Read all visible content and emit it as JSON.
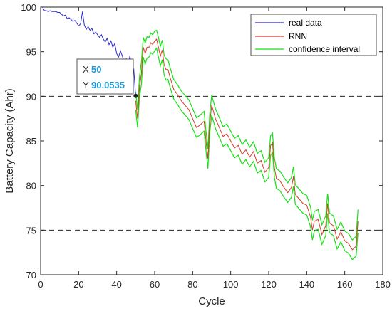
{
  "chart_data": {
    "type": "line",
    "title": "",
    "xlabel": "Cycle",
    "ylabel": "Battery Capacity (Ahr)",
    "xlim": [
      0,
      180
    ],
    "ylim": [
      70,
      100
    ],
    "xticks": [
      0,
      20,
      40,
      60,
      80,
      100,
      120,
      140,
      160,
      180
    ],
    "yticks": [
      70,
      75,
      80,
      85,
      90,
      95,
      100
    ],
    "xtick_labels": [
      "0",
      "20",
      "40",
      "60",
      "80",
      "100",
      "120",
      "140",
      "160",
      "180"
    ],
    "ytick_labels": [
      "70",
      "75",
      "80",
      "85",
      "90",
      "95",
      "100"
    ],
    "grid": false,
    "legend_position": "top-right",
    "reference_lines": [
      90,
      75
    ],
    "series": [
      {
        "name": "real data",
        "color": "#2a2ad0",
        "x": [
          1,
          2,
          3,
          4,
          5,
          6,
          7,
          8,
          9,
          10,
          11,
          12,
          13,
          14,
          15,
          16,
          17,
          18,
          19,
          20,
          21,
          22,
          23,
          24,
          25,
          26,
          27,
          28,
          29,
          30,
          31,
          32,
          33,
          34,
          35,
          36,
          37,
          38,
          39,
          40,
          41,
          42,
          43,
          44,
          45,
          46,
          47,
          48,
          49,
          50
        ],
        "y": [
          100,
          99.6,
          99.6,
          99.5,
          99.6,
          99.5,
          99.5,
          99.5,
          99.4,
          99.4,
          99.2,
          99.0,
          99.1,
          98.7,
          98.8,
          98.6,
          98.4,
          98.5,
          98.2,
          97.9,
          98.1,
          99.5,
          98.0,
          97.5,
          97.8,
          97.4,
          97.6,
          97.0,
          97.2,
          96.9,
          96.6,
          96.9,
          96.4,
          96.1,
          96.5,
          95.8,
          96.2,
          95.5,
          95.9,
          94.8,
          94.4,
          95.1,
          94.5,
          93.8,
          94.2,
          93.3,
          94.6,
          92.6,
          93.0,
          90.05
        ]
      },
      {
        "name": "RNN",
        "color": "#d83a2c",
        "x": [
          50,
          51,
          52,
          53,
          54,
          55,
          56,
          57,
          58,
          59,
          60,
          61,
          62,
          63,
          64,
          65,
          66,
          67,
          68,
          69,
          70,
          72,
          74,
          76,
          78,
          80,
          82,
          84,
          86,
          87,
          88,
          89,
          90,
          92,
          94,
          96,
          98,
          100,
          102,
          104,
          106,
          108,
          110,
          112,
          114,
          116,
          118,
          120,
          121,
          122,
          123,
          124,
          126,
          128,
          130,
          132,
          133,
          134,
          136,
          138,
          140,
          142,
          143,
          144,
          146,
          148,
          150,
          151,
          152,
          154,
          156,
          158,
          160,
          162,
          164,
          166,
          167
        ],
        "y": [
          89.5,
          87.5,
          91,
          92.5,
          95.5,
          94.8,
          95.5,
          95.5,
          96,
          95.8,
          96.2,
          96.4,
          95.5,
          94.5,
          95.2,
          93.5,
          93.0,
          93.0,
          92.2,
          91.5,
          90.8,
          90.2,
          89.5,
          89.0,
          88.5,
          87.5,
          86.5,
          86.8,
          87.2,
          85.0,
          83.0,
          87.0,
          89.0,
          87.5,
          86.5,
          85.5,
          85.8,
          85.0,
          84.2,
          84.5,
          83.5,
          84.0,
          83.2,
          83.8,
          82.5,
          82.8,
          81.5,
          82.0,
          84.5,
          84.8,
          82.0,
          80.8,
          80.5,
          79.8,
          79.2,
          79.8,
          81.0,
          79.0,
          78.5,
          78.0,
          77.8,
          76.5,
          75.0,
          76.0,
          76.2,
          74.5,
          75.5,
          78.0,
          75.8,
          75.5,
          74.0,
          74.8,
          73.8,
          73.5,
          72.8,
          73.2,
          76.0
        ]
      },
      {
        "name": "confidence interval",
        "color": "#15e115",
        "x": [
          50,
          51,
          52,
          53,
          54,
          55,
          56,
          57,
          58,
          59,
          60,
          61,
          62,
          63,
          64,
          65,
          66,
          67,
          68,
          69,
          70,
          72,
          74,
          76,
          78,
          80,
          82,
          84,
          86,
          87,
          88,
          89,
          90,
          92,
          94,
          96,
          98,
          100,
          102,
          104,
          106,
          108,
          110,
          112,
          114,
          116,
          118,
          120,
          121,
          122,
          123,
          124,
          126,
          128,
          130,
          132,
          133,
          134,
          136,
          138,
          140,
          142,
          143,
          144,
          146,
          148,
          150,
          151,
          152,
          154,
          156,
          158,
          160,
          162,
          164,
          166,
          167
        ],
        "upper": [
          90.5,
          88.5,
          92.2,
          93.8,
          96.6,
          96.0,
          96.7,
          96.6,
          97.1,
          96.9,
          97.3,
          97.4,
          96.6,
          95.6,
          96.3,
          94.6,
          94.2,
          94.1,
          93.3,
          92.6,
          91.9,
          91.3,
          90.6,
          90.1,
          89.6,
          88.6,
          87.6,
          87.9,
          88.3,
          86.1,
          84.1,
          88.1,
          90.1,
          88.6,
          87.6,
          86.6,
          86.9,
          86.1,
          85.3,
          85.6,
          84.6,
          85.1,
          84.3,
          84.9,
          83.6,
          83.9,
          82.6,
          83.1,
          85.6,
          85.9,
          83.1,
          81.9,
          81.6,
          80.9,
          80.3,
          80.9,
          82.1,
          80.1,
          79.6,
          79.1,
          78.9,
          77.6,
          76.1,
          77.1,
          77.3,
          75.6,
          76.6,
          79.1,
          76.9,
          76.6,
          75.1,
          75.9,
          74.9,
          74.6,
          73.9,
          74.3,
          77.3
        ],
        "lower": [
          88.5,
          86.5,
          89.9,
          91.3,
          94.4,
          93.6,
          94.3,
          94.4,
          94.9,
          94.7,
          95.1,
          95.4,
          94.4,
          93.4,
          94.1,
          92.4,
          91.8,
          91.9,
          91.1,
          90.4,
          89.7,
          89.1,
          88.4,
          87.9,
          87.4,
          86.4,
          85.4,
          85.7,
          86.1,
          83.9,
          81.9,
          85.9,
          87.9,
          86.4,
          85.4,
          84.4,
          84.7,
          83.9,
          83.1,
          83.4,
          82.4,
          82.9,
          82.1,
          82.7,
          81.4,
          81.7,
          80.4,
          80.9,
          83.4,
          83.7,
          80.9,
          79.7,
          79.4,
          78.7,
          78.1,
          78.7,
          79.9,
          77.9,
          77.4,
          76.9,
          76.7,
          75.4,
          73.9,
          74.9,
          75.1,
          73.4,
          74.4,
          76.9,
          74.7,
          74.4,
          72.9,
          73.7,
          72.7,
          72.4,
          71.7,
          72.1,
          74.7
        ]
      }
    ],
    "datatip": {
      "x_key": "X",
      "x_value": "50",
      "y_key": "Y",
      "y_value": "90.0535",
      "point_x": 50,
      "point_y": 90.05
    }
  }
}
